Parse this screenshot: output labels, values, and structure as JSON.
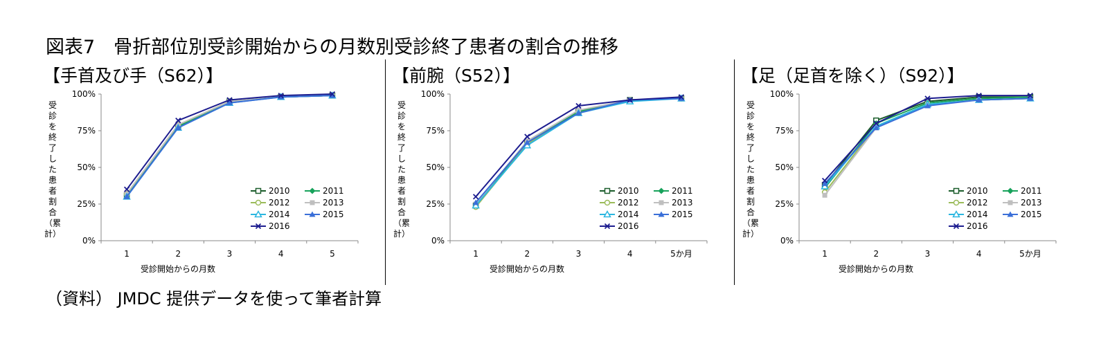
{
  "page": {
    "title": "図表7　骨折部位別受診開始からの月数別受診終了患者の割合の推移",
    "source": "（資料） JMDC 提供データを使って筆者計算"
  },
  "chart_data": [
    {
      "type": "line",
      "subtitle": "【手首及び手（S62）】",
      "xlabel": "受診開始からの月数",
      "ylabel": [
        "受",
        "診",
        "を",
        "終",
        "了",
        "し",
        "た",
        "患",
        "者",
        "割",
        "合",
        "（累",
        "計）"
      ],
      "categories": [
        "1",
        "2",
        "3",
        "4",
        "5"
      ],
      "yticks": [
        "0%",
        "25%",
        "50%",
        "75%",
        "100%"
      ],
      "ylim": [
        0,
        100
      ],
      "legend_position": "right",
      "series": [
        {
          "name": "2010",
          "values": [
            31,
            78,
            95,
            98,
            99
          ]
        },
        {
          "name": "2011",
          "values": [
            31,
            78,
            95,
            98,
            99
          ]
        },
        {
          "name": "2012",
          "values": [
            32,
            79,
            95,
            98,
            99
          ]
        },
        {
          "name": "2013",
          "values": [
            32,
            79,
            95,
            98,
            99
          ]
        },
        {
          "name": "2014",
          "values": [
            30,
            77,
            94,
            98,
            99
          ]
        },
        {
          "name": "2015",
          "values": [
            30,
            77,
            94,
            98,
            99
          ]
        },
        {
          "name": "2016",
          "values": [
            35,
            82,
            96,
            99,
            100
          ]
        }
      ]
    },
    {
      "type": "line",
      "subtitle": "【前腕（S52）】",
      "xlabel": "受診開始からの月数",
      "ylabel": [
        "受",
        "診",
        "を",
        "終",
        "了",
        "し",
        "た",
        "患",
        "者",
        "割",
        "合",
        "（累",
        "計）"
      ],
      "categories": [
        "1",
        "2",
        "3",
        "4",
        "5か月"
      ],
      "yticks": [
        "0%",
        "25%",
        "50%",
        "75%",
        "100%"
      ],
      "ylim": [
        0,
        100
      ],
      "legend_position": "right",
      "series": [
        {
          "name": "2010",
          "values": [
            24,
            67,
            88,
            96,
            97
          ]
        },
        {
          "name": "2011",
          "values": [
            25,
            67,
            88,
            96,
            97
          ]
        },
        {
          "name": "2012",
          "values": [
            23,
            66,
            87,
            96,
            97
          ]
        },
        {
          "name": "2013",
          "values": [
            25,
            68,
            89,
            96,
            97
          ]
        },
        {
          "name": "2014",
          "values": [
            24,
            65,
            87,
            95,
            97
          ]
        },
        {
          "name": "2015",
          "values": [
            26,
            67,
            87,
            96,
            97
          ]
        },
        {
          "name": "2016",
          "values": [
            30,
            71,
            92,
            96,
            98
          ]
        }
      ]
    },
    {
      "type": "line",
      "subtitle": "【足（足首を除く）（S92）】",
      "xlabel": "受診開始からの月数",
      "ylabel": [
        "受",
        "診",
        "を",
        "終",
        "了",
        "し",
        "た",
        "患",
        "者",
        "割",
        "合",
        "（累",
        "計）"
      ],
      "categories": [
        "1",
        "2",
        "3",
        "4",
        "5か月"
      ],
      "yticks": [
        "0%",
        "25%",
        "50%",
        "75%",
        "100%"
      ],
      "ylim": [
        0,
        100
      ],
      "legend_position": "right",
      "series": [
        {
          "name": "2010",
          "values": [
            38,
            82,
            95,
            98,
            98
          ]
        },
        {
          "name": "2011",
          "values": [
            36,
            80,
            94,
            97,
            98
          ]
        },
        {
          "name": "2012",
          "values": [
            33,
            78,
            93,
            96,
            97
          ]
        },
        {
          "name": "2013",
          "values": [
            31,
            77,
            93,
            96,
            97
          ]
        },
        {
          "name": "2014",
          "values": [
            37,
            78,
            93,
            96,
            97
          ]
        },
        {
          "name": "2015",
          "values": [
            39,
            77,
            92,
            96,
            97
          ]
        },
        {
          "name": "2016",
          "values": [
            41,
            80,
            97,
            99,
            99
          ]
        }
      ]
    }
  ],
  "series_styles": [
    {
      "color": "#1a5c2a",
      "marker": "square-open"
    },
    {
      "color": "#17a25b",
      "marker": "diamond"
    },
    {
      "color": "#9bbb59",
      "marker": "circle-open"
    },
    {
      "color": "#bfbfbf",
      "marker": "square"
    },
    {
      "color": "#29b6e0",
      "marker": "triangle-open"
    },
    {
      "color": "#3a6fd8",
      "marker": "triangle"
    },
    {
      "color": "#1c1c8f",
      "marker": "x"
    }
  ]
}
